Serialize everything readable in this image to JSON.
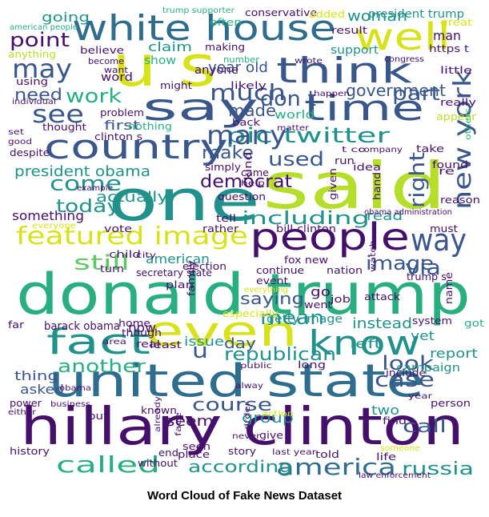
{
  "caption": "Word Cloud of Fake News Dataset",
  "colors": {
    "purple": "#45106b",
    "darkblue": "#39578a",
    "blue": "#2f6d8e",
    "teal": "#21918c",
    "green": "#29af7f",
    "lightgreen": "#5ec962",
    "lime": "#b5de2b",
    "yellow": "#d7e219",
    "grey": "#9a9a9a"
  },
  "words": [
    {
      "text": "donald trump"
    },
    {
      "text": "hillary clinton"
    },
    {
      "text": "one"
    },
    {
      "text": "said"
    },
    {
      "text": "united state"
    },
    {
      "text": "u s"
    },
    {
      "text": "white house"
    },
    {
      "text": "say"
    },
    {
      "text": "people"
    },
    {
      "text": "time"
    },
    {
      "text": "country"
    },
    {
      "text": "think"
    },
    {
      "text": "featured image"
    },
    {
      "text": "even"
    },
    {
      "text": "well"
    },
    {
      "text": "fact"
    },
    {
      "text": "know"
    },
    {
      "text": "pic twitter"
    },
    {
      "text": "new york"
    },
    {
      "text": "way"
    },
    {
      "text": "america"
    },
    {
      "text": "called"
    },
    {
      "text": "may"
    },
    {
      "text": "many"
    },
    {
      "text": "see"
    },
    {
      "text": "much"
    },
    {
      "text": "including"
    },
    {
      "text": "still"
    },
    {
      "text": "point"
    },
    {
      "text": "work"
    },
    {
      "text": "right"
    },
    {
      "text": "part"
    },
    {
      "text": "republican"
    },
    {
      "text": "mean"
    },
    {
      "text": "case"
    },
    {
      "text": "look"
    },
    {
      "text": "come"
    },
    {
      "text": "image"
    },
    {
      "text": "russia"
    },
    {
      "text": "according"
    },
    {
      "text": "course"
    },
    {
      "text": "woman"
    },
    {
      "text": "another"
    },
    {
      "text": "don t"
    },
    {
      "text": "government"
    },
    {
      "text": "today"
    },
    {
      "text": "democrat"
    },
    {
      "text": "made"
    },
    {
      "text": "used"
    },
    {
      "text": "via"
    },
    {
      "text": "call"
    },
    {
      "text": "u"
    },
    {
      "text": "make"
    },
    {
      "text": "need"
    },
    {
      "text": "saying"
    },
    {
      "text": "instead"
    },
    {
      "text": "president obama"
    },
    {
      "text": "actually"
    },
    {
      "text": "going"
    },
    {
      "text": "claim"
    },
    {
      "text": "year old"
    },
    {
      "text": "first"
    },
    {
      "text": "report"
    },
    {
      "text": "left"
    },
    {
      "text": "group"
    },
    {
      "text": "two"
    },
    {
      "text": "thing"
    },
    {
      "text": "issue"
    },
    {
      "text": "day"
    },
    {
      "text": "seem"
    },
    {
      "text": "go"
    },
    {
      "text": "yet"
    },
    {
      "text": "president trump"
    },
    {
      "text": "support"
    },
    {
      "text": "conservative"
    },
    {
      "text": "american"
    },
    {
      "text": "read"
    },
    {
      "text": "something"
    },
    {
      "text": "world"
    },
    {
      "text": "word"
    },
    {
      "text": "show"
    },
    {
      "text": "anyone"
    },
    {
      "text": "asked"
    },
    {
      "text": "now"
    },
    {
      "text": "getty image"
    },
    {
      "text": "man"
    },
    {
      "text": "bill clinton"
    },
    {
      "text": "campaign"
    },
    {
      "text": "trump supporter"
    },
    {
      "text": "added"
    },
    {
      "text": "often"
    },
    {
      "text": "making"
    },
    {
      "text": "result"
    },
    {
      "text": "great"
    },
    {
      "text": "https t"
    },
    {
      "text": "congress"
    },
    {
      "text": "little"
    },
    {
      "text": "wrote"
    },
    {
      "text": "number"
    },
    {
      "text": "likely"
    },
    {
      "text": "believe"
    },
    {
      "text": "anything"
    },
    {
      "text": "american people"
    },
    {
      "text": "become"
    },
    {
      "text": "want"
    },
    {
      "text": "might"
    },
    {
      "text": "using"
    },
    {
      "text": "individual"
    },
    {
      "text": "happen"
    },
    {
      "text": "really"
    },
    {
      "text": "problem"
    },
    {
      "text": "back"
    },
    {
      "text": "matter"
    },
    {
      "text": "appear"
    },
    {
      "text": "others"
    },
    {
      "text": "set"
    },
    {
      "text": "good"
    },
    {
      "text": "despite"
    },
    {
      "text": "thought"
    },
    {
      "text": "nothing"
    },
    {
      "text": "clinton s"
    },
    {
      "text": "t co"
    },
    {
      "text": "company"
    },
    {
      "text": "take"
    },
    {
      "text": "found"
    },
    {
      "text": "simply"
    },
    {
      "text": "run"
    },
    {
      "text": "idea"
    },
    {
      "text": "re"
    },
    {
      "text": "kind"
    },
    {
      "text": "came"
    },
    {
      "text": "help"
    },
    {
      "text": "example"
    },
    {
      "text": "given"
    },
    {
      "text": "hand"
    },
    {
      "text": "question"
    },
    {
      "text": "reason"
    },
    {
      "text": "everyone"
    },
    {
      "text": "tell"
    },
    {
      "text": "obama administration"
    },
    {
      "text": "vote"
    },
    {
      "text": "rather"
    },
    {
      "text": "must"
    },
    {
      "text": "child"
    },
    {
      "text": "city"
    },
    {
      "text": "election"
    },
    {
      "text": "fox new"
    },
    {
      "text": "watch"
    },
    {
      "text": "turn"
    },
    {
      "text": "continue"
    },
    {
      "text": "nation"
    },
    {
      "text": "trump s"
    },
    {
      "text": "secretary state"
    },
    {
      "text": "event"
    },
    {
      "text": "plan"
    },
    {
      "text": "everything"
    },
    {
      "text": "family"
    },
    {
      "text": "went"
    },
    {
      "text": "job"
    },
    {
      "text": "attack"
    },
    {
      "text": "name"
    },
    {
      "text": "barack obama"
    },
    {
      "text": "especially"
    },
    {
      "text": "far"
    },
    {
      "text": "home"
    },
    {
      "text": "system"
    },
    {
      "text": "got"
    },
    {
      "text": "though"
    },
    {
      "text": "least"
    },
    {
      "text": "real"
    },
    {
      "text": "area"
    },
    {
      "text": "public"
    },
    {
      "text": "long"
    },
    {
      "text": "include"
    },
    {
      "text": "alway"
    },
    {
      "text": "power"
    },
    {
      "text": "business"
    },
    {
      "text": "either"
    },
    {
      "text": "known"
    },
    {
      "text": "put"
    },
    {
      "text": "order"
    },
    {
      "text": "action"
    },
    {
      "text": "find"
    },
    {
      "text": "person"
    },
    {
      "text": "already"
    },
    {
      "text": "face"
    },
    {
      "text": "never"
    },
    {
      "text": "give"
    },
    {
      "text": "seen"
    },
    {
      "text": "story"
    },
    {
      "text": "history"
    },
    {
      "text": "end"
    },
    {
      "text": "place"
    },
    {
      "text": "without"
    },
    {
      "text": "last year"
    },
    {
      "text": "told"
    },
    {
      "text": "someone"
    },
    {
      "text": "life"
    },
    {
      "text": "law enforcement"
    },
    {
      "text": "obama"
    },
    {
      "text": "year"
    }
  ]
}
